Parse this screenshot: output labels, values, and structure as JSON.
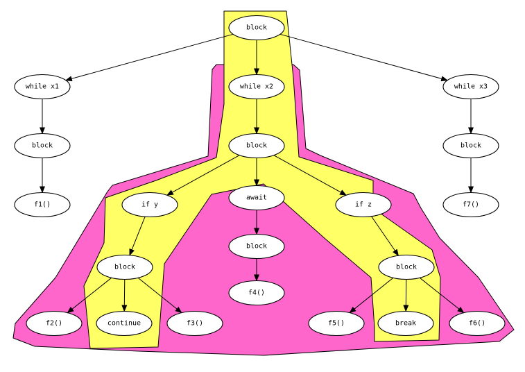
{
  "colors": {
    "outer_region": "#ff66cc",
    "inner_region": "#ffff66",
    "node_fill": "#ffffff",
    "stroke": "#000000"
  },
  "nodes": [
    {
      "id": "block_root",
      "label": "block"
    },
    {
      "id": "while_x1",
      "label": "while x1"
    },
    {
      "id": "while_x2",
      "label": "while x2"
    },
    {
      "id": "while_x3",
      "label": "while x3"
    },
    {
      "id": "block_x1",
      "label": "block"
    },
    {
      "id": "block_x2",
      "label": "block"
    },
    {
      "id": "block_x3",
      "label": "block"
    },
    {
      "id": "f1",
      "label": "f1()"
    },
    {
      "id": "f7",
      "label": "f7()"
    },
    {
      "id": "if_y",
      "label": "if y"
    },
    {
      "id": "await",
      "label": "await"
    },
    {
      "id": "if_z",
      "label": "if z"
    },
    {
      "id": "block_y",
      "label": "block"
    },
    {
      "id": "block_await",
      "label": "block"
    },
    {
      "id": "block_z",
      "label": "block"
    },
    {
      "id": "f4",
      "label": "f4()"
    },
    {
      "id": "f2",
      "label": "f2()"
    },
    {
      "id": "continue",
      "label": "continue"
    },
    {
      "id": "f3",
      "label": "f3()"
    },
    {
      "id": "f5",
      "label": "f5()"
    },
    {
      "id": "break",
      "label": "break"
    },
    {
      "id": "f6",
      "label": "f6()"
    }
  ],
  "edges": [
    [
      "block_root",
      "while_x1"
    ],
    [
      "block_root",
      "while_x2"
    ],
    [
      "block_root",
      "while_x3"
    ],
    [
      "while_x1",
      "block_x1"
    ],
    [
      "block_x1",
      "f1"
    ],
    [
      "while_x2",
      "block_x2"
    ],
    [
      "while_x3",
      "block_x3"
    ],
    [
      "block_x3",
      "f7"
    ],
    [
      "block_x2",
      "if_y"
    ],
    [
      "block_x2",
      "await"
    ],
    [
      "block_x2",
      "if_z"
    ],
    [
      "if_y",
      "block_y"
    ],
    [
      "await",
      "block_await"
    ],
    [
      "block_await",
      "f4"
    ],
    [
      "if_z",
      "block_z"
    ],
    [
      "block_y",
      "f2"
    ],
    [
      "block_y",
      "continue"
    ],
    [
      "block_y",
      "f3"
    ],
    [
      "block_z",
      "f5"
    ],
    [
      "block_z",
      "break"
    ],
    [
      "block_z",
      "f6"
    ]
  ]
}
